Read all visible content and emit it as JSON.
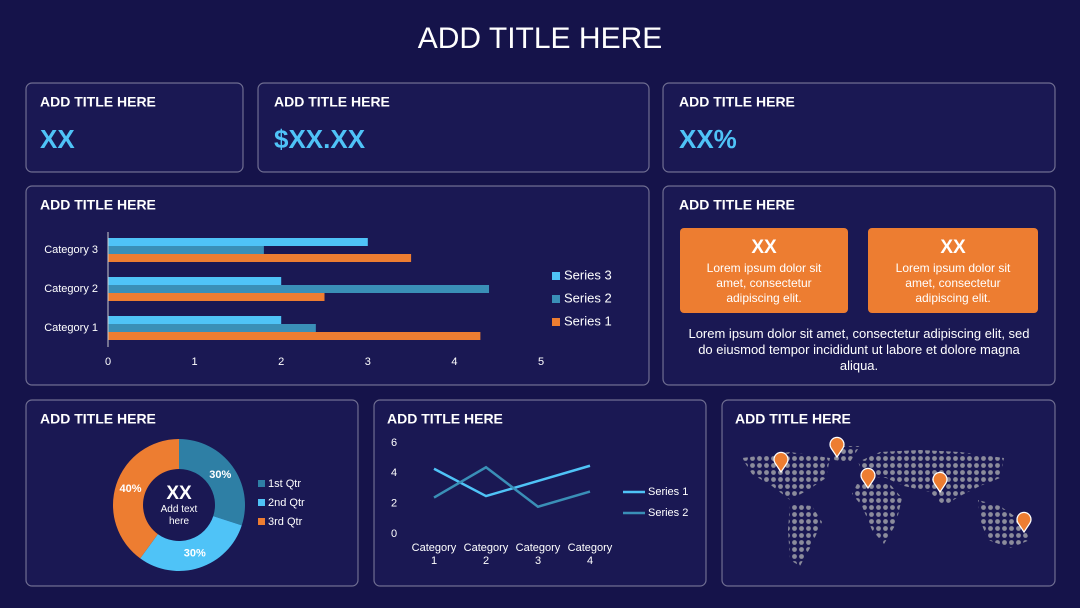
{
  "title": "ADD TITLE HERE",
  "kpis": [
    {
      "title": "ADD TITLE HERE",
      "value": "XX"
    },
    {
      "title": "ADD TITLE HERE",
      "value": "$XX.XX"
    },
    {
      "title": "ADD TITLE HERE",
      "value": "XX%"
    }
  ],
  "chart_data": [
    {
      "type": "bar",
      "orientation": "horizontal",
      "title": "ADD TITLE HERE",
      "categories": [
        "Category 1",
        "Category 2",
        "Category 3"
      ],
      "series": [
        {
          "name": "Series 1",
          "color": "#ed7d31",
          "values": [
            4.3,
            2.5,
            3.5
          ]
        },
        {
          "name": "Series 2",
          "color": "#3a8fb7",
          "values": [
            2.4,
            4.4,
            1.8
          ]
        },
        {
          "name": "Series 3",
          "color": "#4fc3f7",
          "values": [
            2,
            2,
            3
          ]
        }
      ],
      "xlim": [
        0,
        5
      ],
      "xticks": [
        0,
        1,
        2,
        3,
        4,
        5
      ],
      "grid": false,
      "legend": "right"
    },
    {
      "type": "doughnut",
      "title": "ADD TITLE HERE",
      "center_title": "XX",
      "center_text": "Add text here",
      "categories": [
        "1st Qtr",
        "2nd Qtr",
        "3rd Qtr"
      ],
      "values": [
        30,
        30,
        40
      ],
      "value_labels": [
        "30%",
        "30%",
        "40%"
      ],
      "colors": [
        "#2e7fa5",
        "#4fc3f7",
        "#ed7d31"
      ],
      "legend": "right"
    },
    {
      "type": "line",
      "title": "ADD TITLE HERE",
      "categories": [
        "Category 1",
        "Category 2",
        "Category 3",
        "Category 4"
      ],
      "series": [
        {
          "name": "Series 1",
          "color": "#4fc3f7",
          "values": [
            4.3,
            2.5,
            3.5,
            4.5
          ]
        },
        {
          "name": "Series 2",
          "color": "#3a8fb7",
          "values": [
            2.4,
            4.4,
            1.8,
            2.8
          ]
        }
      ],
      "ylim": [
        0,
        6
      ],
      "yticks": [
        0,
        2,
        4,
        6
      ],
      "grid": false,
      "legend": "right"
    }
  ],
  "text_panel": {
    "title": "ADD TITLE HERE",
    "boxes": [
      {
        "value": "XX",
        "text": "Lorem ipsum dolor sit amet, consectetur adipiscing elit."
      },
      {
        "value": "XX",
        "text": "Lorem ipsum dolor sit amet, consectetur adipiscing elit."
      }
    ],
    "body": "Lorem ipsum dolor sit amet, consectetur adipiscing elit, sed do eiusmod tempor incididunt ut labore et dolore magna aliqua."
  },
  "map": {
    "title": "ADD TITLE HERE"
  }
}
